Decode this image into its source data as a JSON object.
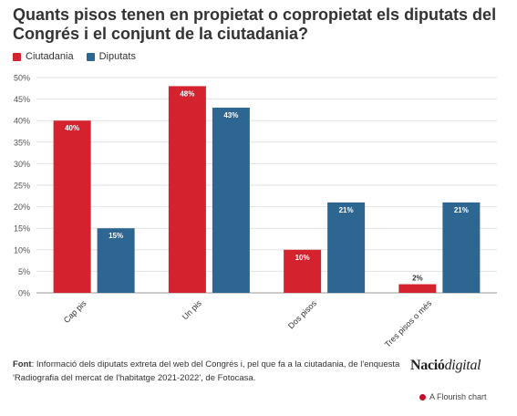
{
  "chart_data": {
    "type": "bar",
    "title": "Quants pisos tenen en propietat o copropietat els diputats del Congrés i el conjunt de la ciutadania?",
    "categories": [
      "Cap pis",
      "Un pis",
      "Dos pisos",
      "Tres pisos o més"
    ],
    "series": [
      {
        "name": "Ciutadania",
        "color": "#d4222e",
        "values": [
          40,
          48,
          10,
          2
        ],
        "labels": [
          "40%",
          "48%",
          "10%",
          "2%"
        ]
      },
      {
        "name": "Diputats",
        "color": "#2d6691",
        "values": [
          15,
          43,
          21,
          21
        ],
        "labels": [
          "15%",
          "43%",
          "21%",
          "21%"
        ]
      }
    ],
    "ylim": [
      0,
      50
    ],
    "yticks": [
      0,
      5,
      10,
      15,
      20,
      25,
      30,
      35,
      40,
      45,
      50
    ],
    "ytick_labels": [
      "0%",
      "5%",
      "10%",
      "15%",
      "20%",
      "25%",
      "30%",
      "35%",
      "40%",
      "45%",
      "50%"
    ],
    "grid": true,
    "legend_position": "top-left"
  },
  "footnote": {
    "label": "Font",
    "text": ": Informació dels diputats extreta del web del Congrés i, pel que fa a la ciutadania, de l'enquesta 'Radiografia del mercat de l'habitatge 2021-2022', de Fotocasa."
  },
  "brand": {
    "part1": "Nació",
    "part2": "digital"
  },
  "credit": "A Flourish chart"
}
